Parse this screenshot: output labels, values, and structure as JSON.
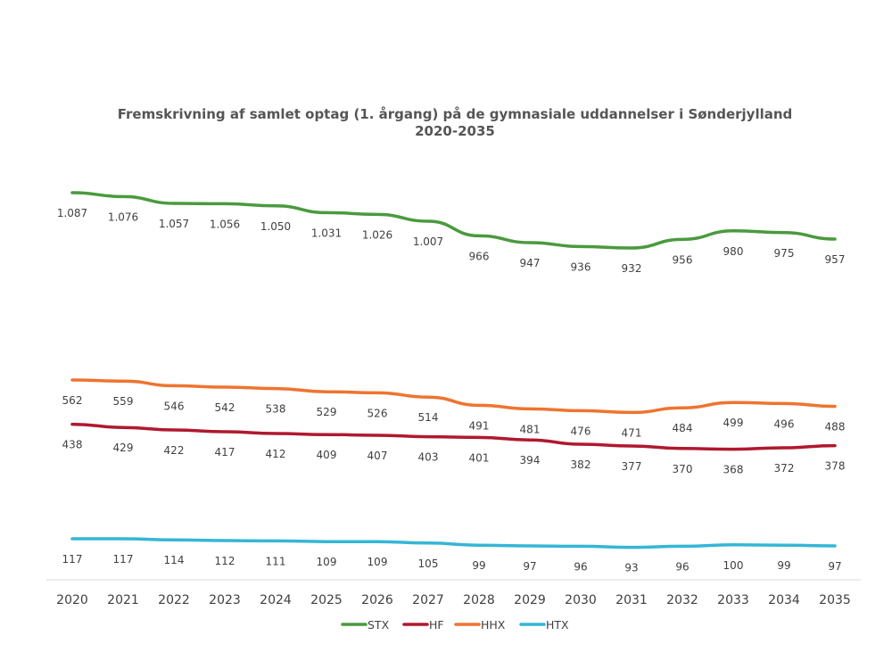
{
  "chart_data": {
    "type": "line",
    "title": [
      "Fremskrivning af samlet optag (1. årgang) på de gymnasiale uddannelser i Sønderjylland",
      "2020-2035"
    ],
    "xlabel": "",
    "ylabel": "",
    "grid": false,
    "legend_position": "bottom",
    "categories": [
      "2020",
      "2021",
      "2022",
      "2023",
      "2024",
      "2025",
      "2026",
      "2027",
      "2028",
      "2029",
      "2030",
      "2031",
      "2032",
      "2033",
      "2034",
      "2035"
    ],
    "series": [
      {
        "name": "STX",
        "color": "#4a9a3e",
        "values": [
          1087,
          1076,
          1057,
          1056,
          1050,
          1031,
          1026,
          1007,
          966,
          947,
          936,
          932,
          956,
          980,
          975,
          957
        ],
        "labels": [
          "1.087",
          "1.076",
          "1.057",
          "1.056",
          "1.050",
          "1.031",
          "1.026",
          "1.007",
          "966",
          "947",
          "936",
          "932",
          "956",
          "980",
          "975",
          "957"
        ]
      },
      {
        "name": "HF",
        "color": "#b0182f",
        "values": [
          438,
          429,
          422,
          417,
          412,
          409,
          407,
          403,
          401,
          394,
          382,
          377,
          370,
          368,
          372,
          378
        ],
        "labels": [
          "438",
          "429",
          "422",
          "417",
          "412",
          "409",
          "407",
          "403",
          "401",
          "394",
          "382",
          "377",
          "370",
          "368",
          "372",
          "378"
        ]
      },
      {
        "name": "HHX",
        "color": "#ee7430",
        "values": [
          562,
          559,
          546,
          542,
          538,
          529,
          526,
          514,
          491,
          481,
          476,
          471,
          484,
          499,
          496,
          488
        ],
        "labels": [
          "562",
          "559",
          "546",
          "542",
          "538",
          "529",
          "526",
          "514",
          "491",
          "481",
          "476",
          "471",
          "484",
          "499",
          "496",
          "488"
        ]
      },
      {
        "name": "HTX",
        "color": "#35b6d6",
        "values": [
          117,
          117,
          114,
          112,
          111,
          109,
          109,
          105,
          99,
          97,
          96,
          93,
          96,
          100,
          99,
          97
        ],
        "labels": [
          "117",
          "117",
          "114",
          "112",
          "111",
          "109",
          "109",
          "105",
          "99",
          "97",
          "96",
          "93",
          "96",
          "100",
          "99",
          "97"
        ]
      }
    ]
  }
}
